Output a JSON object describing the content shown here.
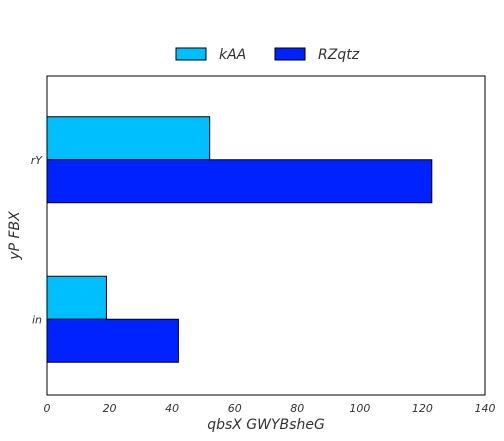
{
  "chart_data": {
    "type": "bar",
    "orientation": "horizontal",
    "title": "",
    "xlabel": "qbsX GWYBsheG",
    "ylabel": "yP FBX",
    "categories": [
      "rY",
      "in"
    ],
    "series": [
      {
        "name": "kAA",
        "values": [
          52,
          19
        ],
        "color": "#00BFFF"
      },
      {
        "name": "RZqtz",
        "values": [
          123,
          42
        ],
        "color": "#0022FF"
      }
    ],
    "xlim": [
      0,
      140
    ],
    "xticks": [
      "0",
      "20",
      "40",
      "60",
      "80",
      "100",
      "120",
      "140"
    ],
    "grid": false,
    "legend": {
      "position": "top-center"
    }
  }
}
